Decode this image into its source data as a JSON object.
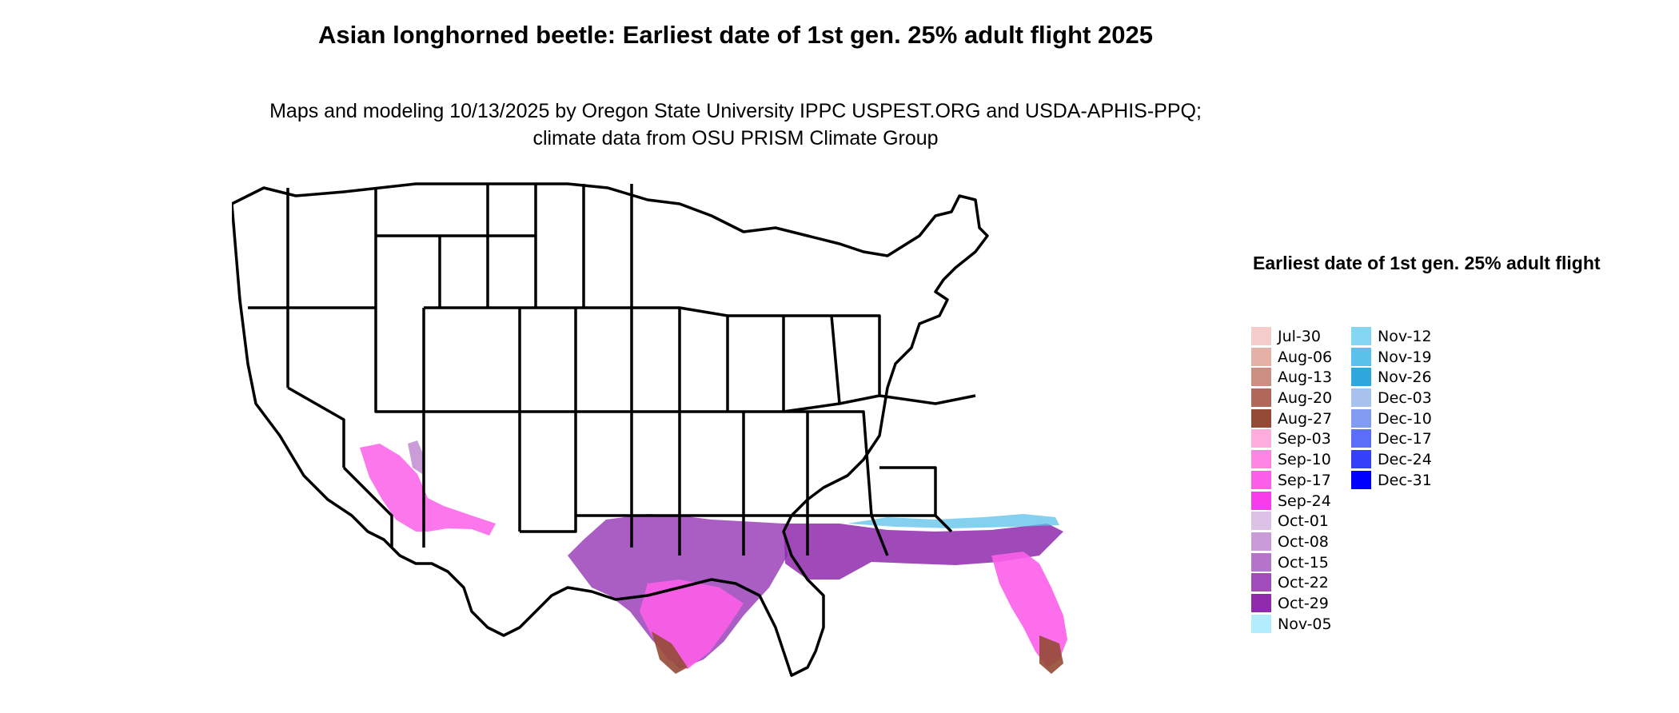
{
  "title": "Asian longhorned beetle: Earliest date of 1st gen. 25% adult flight 2025",
  "subtitle": "Maps and modeling 10/13/2025 by Oregon State University IPPC USPEST.ORG and USDA-APHIS-PPQ; climate data from OSU PRISM Climate Group",
  "legend": {
    "title": "Earliest date of 1st gen. 25% adult flight",
    "items": [
      {
        "label": "Jul-30",
        "color": "#f4cccc"
      },
      {
        "label": "Aug-06",
        "color": "#e5b0a6"
      },
      {
        "label": "Aug-13",
        "color": "#cc8e80"
      },
      {
        "label": "Aug-20",
        "color": "#b0685a"
      },
      {
        "label": "Aug-27",
        "color": "#954a35"
      },
      {
        "label": "Sep-03",
        "color": "#ffaddc"
      },
      {
        "label": "Sep-10",
        "color": "#ff84e4"
      },
      {
        "label": "Sep-17",
        "color": "#fc5ee9"
      },
      {
        "label": "Sep-24",
        "color": "#f73ceb"
      },
      {
        "label": "Oct-01",
        "color": "#dcc2e6"
      },
      {
        "label": "Oct-08",
        "color": "#c99cd8"
      },
      {
        "label": "Oct-15",
        "color": "#b474c8"
      },
      {
        "label": "Oct-22",
        "color": "#a14cbc"
      },
      {
        "label": "Oct-29",
        "color": "#8e2aab"
      },
      {
        "label": "Nov-05",
        "color": "#b3ecfc"
      },
      {
        "label": "Nov-12",
        "color": "#85d6f2"
      },
      {
        "label": "Nov-19",
        "color": "#5ac1ea"
      },
      {
        "label": "Nov-26",
        "color": "#2ea6de"
      },
      {
        "label": "Dec-03",
        "color": "#a8c2ee"
      },
      {
        "label": "Dec-10",
        "color": "#829cf4"
      },
      {
        "label": "Dec-17",
        "color": "#5b6ef7"
      },
      {
        "label": "Dec-24",
        "color": "#3540fb"
      },
      {
        "label": "Dec-31",
        "color": "#0000fe"
      }
    ]
  }
}
